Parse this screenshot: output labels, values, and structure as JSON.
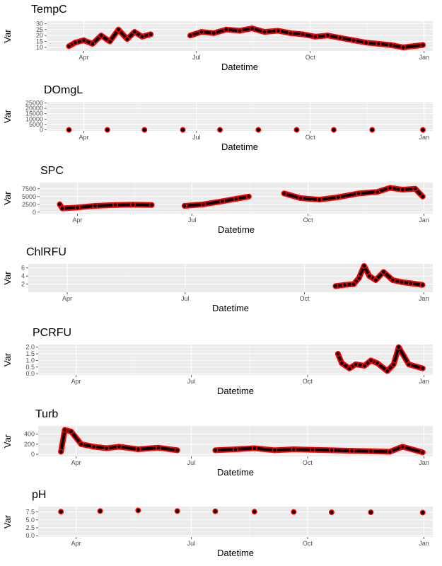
{
  "colors": {
    "panel_bg": "#ebebeb",
    "grid_major": "#ffffff",
    "grid_minor": "#f5f5f5",
    "point_outline": "#ff0000",
    "point_fill": "#000000",
    "tick_text": "#4d4d4d"
  },
  "chart_data": [
    {
      "type": "scatter",
      "title": "TempC",
      "xlabel": "Datetime",
      "ylabel": "Var",
      "x_ticks": [
        "Apr",
        "Jul",
        "Oct",
        "Jan"
      ],
      "y_ticks": [
        "10",
        "15",
        "20",
        "25",
        "30"
      ],
      "y_tick_values": [
        10,
        15,
        20,
        25,
        30
      ],
      "xlim": [
        "2023-03-02",
        "2024-01-08"
      ],
      "ylim": [
        7,
        32
      ],
      "grid": true,
      "series": [
        {
          "x": [
            "2023-03-20",
            "2023-03-25",
            "2023-04-01",
            "2023-04-08",
            "2023-04-15",
            "2023-04-22",
            "2023-04-29",
            "2023-05-06",
            "2023-05-12",
            "2023-05-18",
            "2023-05-25",
            "2023-06-26",
            "2023-07-05",
            "2023-07-15",
            "2023-07-25",
            "2023-08-05",
            "2023-08-15",
            "2023-08-25",
            "2023-09-05",
            "2023-09-15",
            "2023-09-25",
            "2023-10-05",
            "2023-10-15",
            "2023-10-25",
            "2023-11-05",
            "2023-11-15",
            "2023-11-25",
            "2023-12-05",
            "2023-12-15",
            "2023-12-31"
          ],
          "y": [
            11,
            14,
            16,
            13,
            20,
            15,
            25,
            17,
            23,
            19,
            21,
            20,
            23,
            22,
            25,
            24,
            26,
            23,
            24,
            22,
            21,
            19,
            20,
            18,
            16,
            14,
            13,
            12,
            10,
            12
          ]
        }
      ]
    },
    {
      "type": "scatter",
      "title": "DOmgL",
      "xlabel": "Datetime",
      "ylabel": "Var",
      "x_ticks": [
        "Apr",
        "Jul",
        "Oct",
        "Jan"
      ],
      "y_ticks": [
        "0",
        "5000",
        "10000",
        "15000",
        "20000",
        "25000"
      ],
      "y_tick_values": [
        0,
        5000,
        10000,
        15000,
        20000,
        25000
      ],
      "xlim": [
        "2023-03-02",
        "2024-01-08"
      ],
      "ylim": [
        -1000,
        26000
      ],
      "grid": true,
      "series": [
        {
          "x": [
            "2023-03-20",
            "2023-04-20",
            "2023-05-20",
            "2023-06-20",
            "2023-07-20",
            "2023-08-20",
            "2023-09-20",
            "2023-10-20",
            "2023-11-20",
            "2023-12-31"
          ],
          "y": [
            10,
            11,
            9,
            8,
            7,
            8,
            9,
            10,
            11,
            12
          ]
        }
      ]
    },
    {
      "type": "scatter",
      "title": "SPC",
      "xlabel": "Datetime",
      "ylabel": "Var",
      "x_ticks": [
        "Apr",
        "Jul",
        "Oct",
        "Jan"
      ],
      "y_ticks": [
        "0",
        "2500",
        "5000",
        "7500"
      ],
      "y_tick_values": [
        0,
        2500,
        5000,
        7500
      ],
      "xlim": [
        "2023-03-02",
        "2024-01-08"
      ],
      "ylim": [
        -500,
        9500
      ],
      "grid": true,
      "series": [
        {
          "x": [
            "2023-03-18",
            "2023-03-20",
            "2023-04-01",
            "2023-04-15",
            "2023-05-01",
            "2023-05-15",
            "2023-05-30",
            "2023-06-25",
            "2023-07-10",
            "2023-07-25",
            "2023-08-05",
            "2023-08-15",
            "2023-09-12",
            "2023-09-25",
            "2023-10-10",
            "2023-10-25",
            "2023-11-10",
            "2023-11-25",
            "2023-12-05",
            "2023-12-15",
            "2023-12-25",
            "2023-12-31"
          ],
          "y": [
            2500,
            1200,
            1500,
            2000,
            2300,
            2400,
            2300,
            2000,
            2500,
            3500,
            4300,
            5000,
            6000,
            4500,
            4000,
            4800,
            6000,
            6500,
            7800,
            7200,
            7500,
            5000
          ]
        }
      ]
    },
    {
      "type": "scatter",
      "title": "ChlRFU",
      "xlabel": "Datetime",
      "ylabel": "Var",
      "x_ticks": [
        "Apr",
        "Jul",
        "Oct",
        "Jan"
      ],
      "y_ticks": [
        "2",
        "4",
        "6"
      ],
      "y_tick_values": [
        2,
        4,
        6
      ],
      "xlim": [
        "2023-03-02",
        "2024-01-08"
      ],
      "ylim": [
        0,
        7
      ],
      "grid": true,
      "series": [
        {
          "x": [
            "2023-10-25",
            "2023-11-01",
            "2023-11-08",
            "2023-11-12",
            "2023-11-16",
            "2023-11-20",
            "2023-11-25",
            "2023-12-01",
            "2023-12-08",
            "2023-12-15",
            "2023-12-22",
            "2023-12-31"
          ],
          "y": [
            1.5,
            1.8,
            2.0,
            3.5,
            6.5,
            4.0,
            3.0,
            5.0,
            3.0,
            2.5,
            2.2,
            1.8
          ]
        }
      ]
    },
    {
      "type": "scatter",
      "title": "PCRFU",
      "xlabel": "Datetime",
      "ylabel": "Var",
      "x_ticks": [
        "Apr",
        "Jul",
        "Oct",
        "Jan"
      ],
      "y_ticks": [
        "0.0",
        "0.5",
        "1.0",
        "1.5",
        "2.0"
      ],
      "y_tick_values": [
        0.0,
        0.5,
        1.0,
        1.5,
        2.0
      ],
      "xlim": [
        "2023-03-02",
        "2024-01-08"
      ],
      "ylim": [
        -0.1,
        2.2
      ],
      "grid": true,
      "series": [
        {
          "x": [
            "2023-10-25",
            "2023-10-28",
            "2023-11-03",
            "2023-11-08",
            "2023-11-15",
            "2023-11-20",
            "2023-11-25",
            "2023-12-03",
            "2023-12-08",
            "2023-12-12",
            "2023-12-20",
            "2023-12-31"
          ],
          "y": [
            1.5,
            0.8,
            0.4,
            0.7,
            0.6,
            1.0,
            0.8,
            0.2,
            0.7,
            2.0,
            0.7,
            0.4
          ]
        }
      ]
    },
    {
      "type": "scatter",
      "title": "Turb",
      "xlabel": "Datetime",
      "ylabel": "Var",
      "x_ticks": [
        "Apr",
        "Jul",
        "Oct",
        "Jan"
      ],
      "y_ticks": [
        "0",
        "200",
        "400"
      ],
      "y_tick_values": [
        0,
        200,
        400
      ],
      "xlim": [
        "2023-03-02",
        "2024-01-08"
      ],
      "ylim": [
        -40,
        560
      ],
      "grid": true,
      "series": [
        {
          "x": [
            "2023-03-20",
            "2023-03-23",
            "2023-03-28",
            "2023-04-05",
            "2023-04-15",
            "2023-04-25",
            "2023-05-05",
            "2023-05-20",
            "2023-06-05",
            "2023-06-20",
            "2023-07-20",
            "2023-08-05",
            "2023-08-20",
            "2023-09-05",
            "2023-09-20",
            "2023-10-05",
            "2023-10-20",
            "2023-11-05",
            "2023-11-20",
            "2023-12-05",
            "2023-12-15",
            "2023-12-31"
          ],
          "y": [
            50,
            480,
            450,
            200,
            150,
            120,
            150,
            100,
            130,
            80,
            80,
            100,
            120,
            80,
            100,
            90,
            80,
            70,
            60,
            50,
            150,
            40
          ]
        }
      ]
    },
    {
      "type": "scatter",
      "title": "pH",
      "xlabel": "Datetime",
      "ylabel": "Var",
      "x_ticks": [
        "Apr",
        "Jul",
        "Oct",
        "Jan"
      ],
      "y_ticks": [
        "0.0",
        "2.5",
        "5.0",
        "7.5"
      ],
      "y_tick_values": [
        0.0,
        2.5,
        5.0,
        7.5
      ],
      "xlim": [
        "2023-03-02",
        "2024-01-08"
      ],
      "ylim": [
        -0.4,
        9.2
      ],
      "grid": true,
      "series": [
        {
          "x": [
            "2023-03-20",
            "2023-04-20",
            "2023-05-20",
            "2023-06-20",
            "2023-07-20",
            "2023-08-20",
            "2023-09-20",
            "2023-10-20",
            "2023-11-20",
            "2023-12-31"
          ],
          "y": [
            7.6,
            7.8,
            8.0,
            7.8,
            7.7,
            7.6,
            7.5,
            7.4,
            7.4,
            7.3
          ]
        }
      ]
    }
  ]
}
